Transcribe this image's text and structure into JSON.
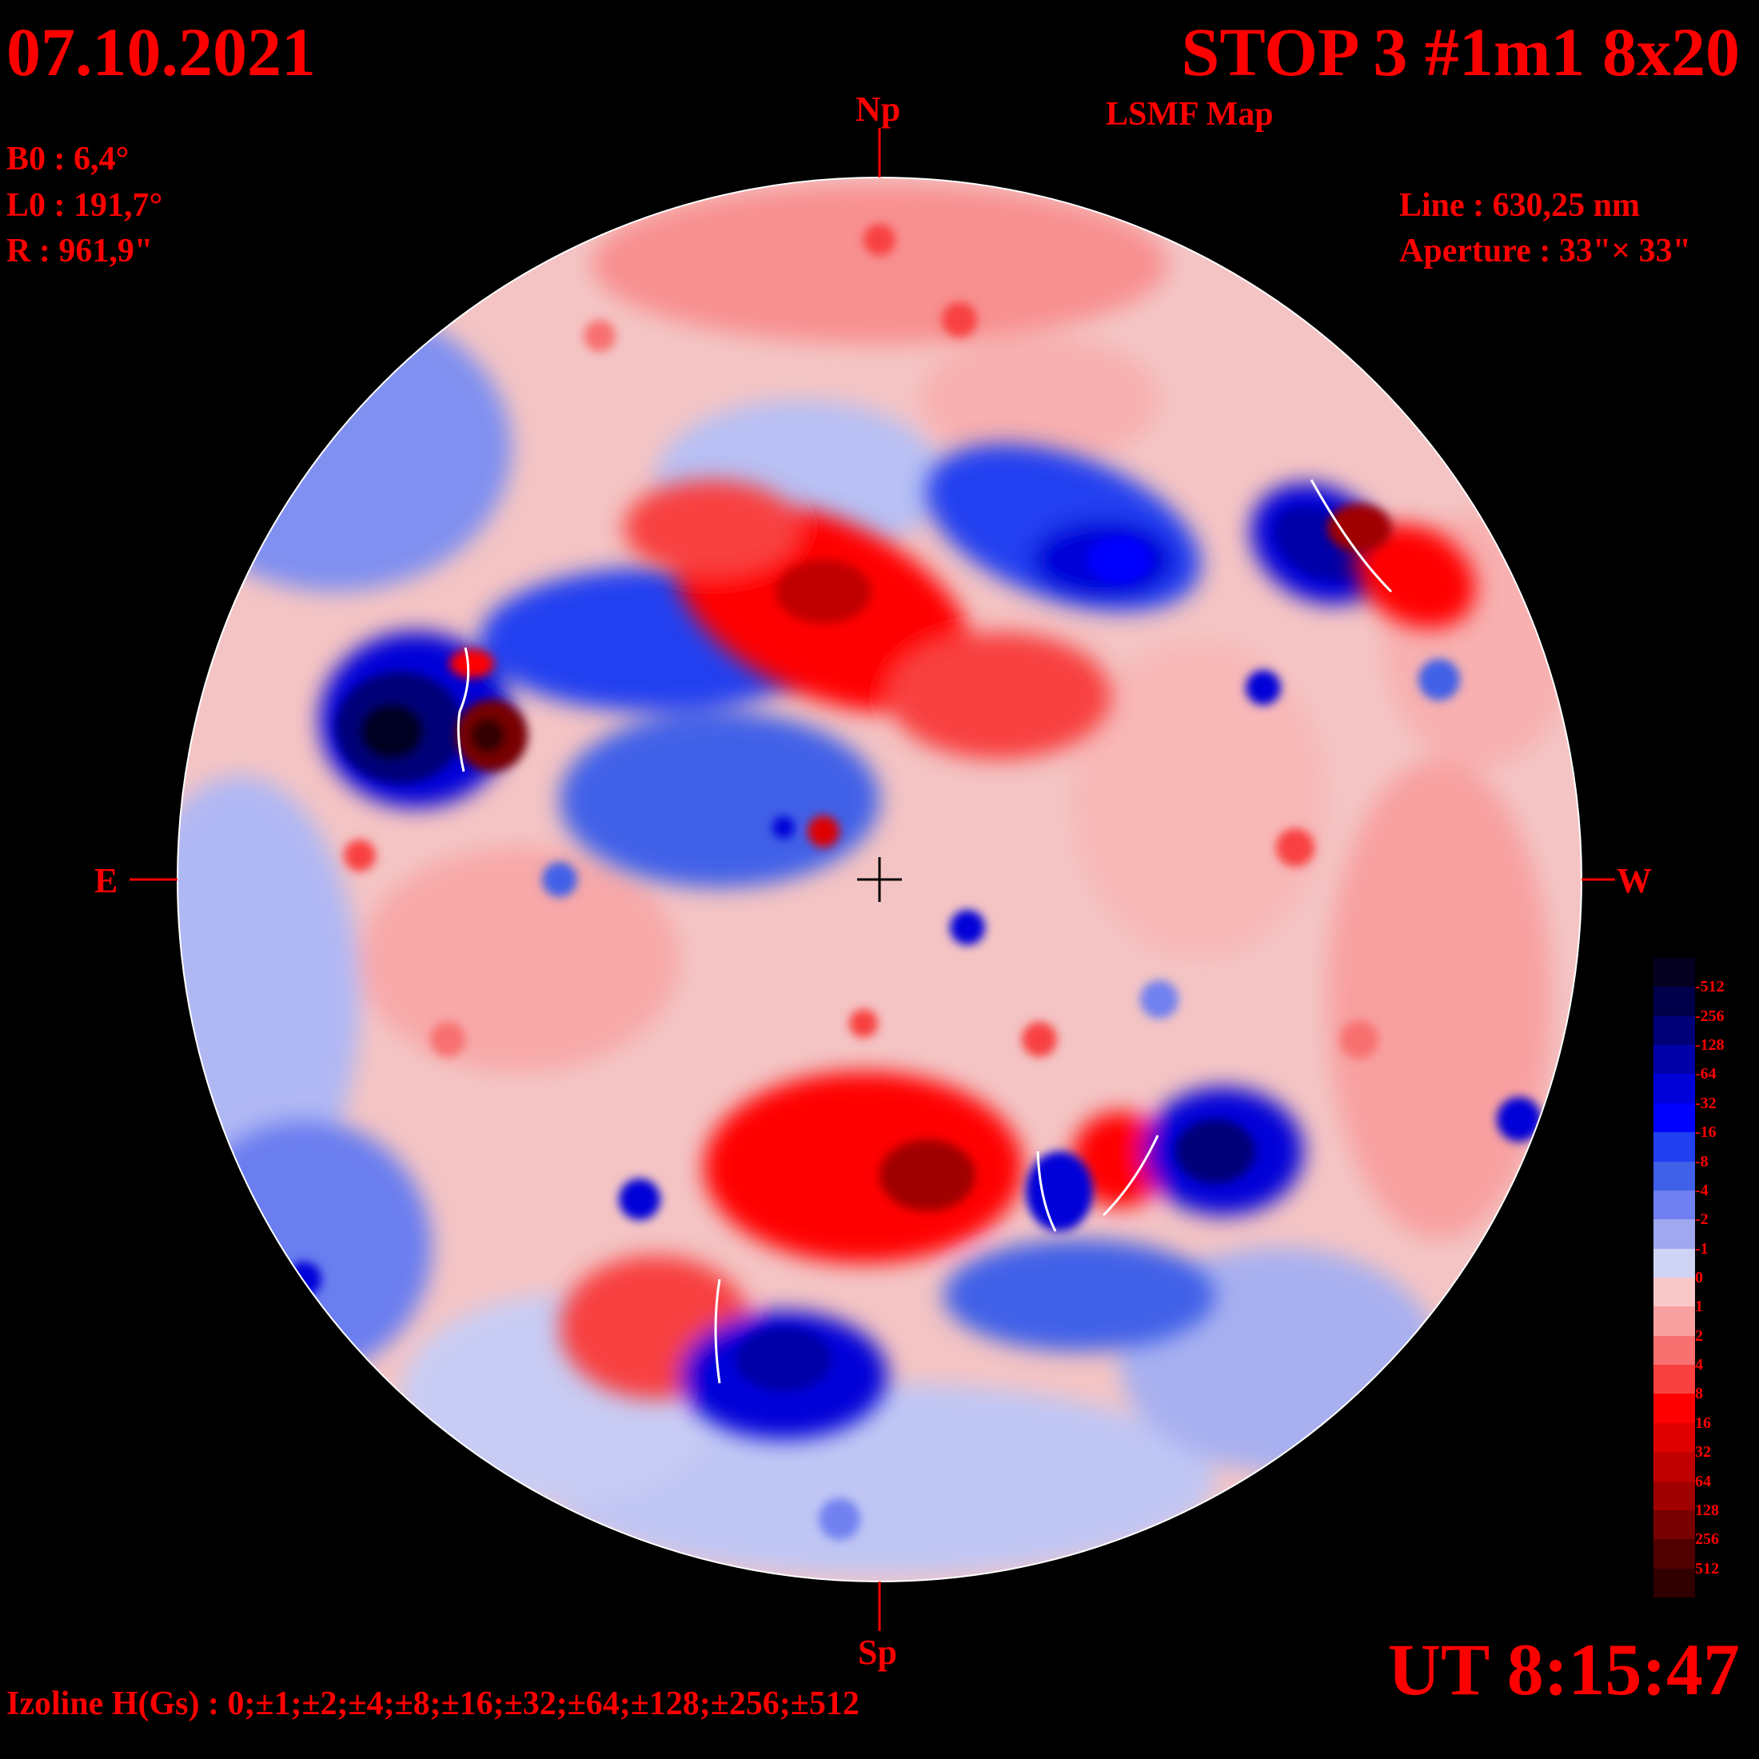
{
  "header": {
    "date": "07.10.2021",
    "title": "STOP 3 #1m1 8x20",
    "subtitle": "LSMF  Map"
  },
  "params": {
    "b0": "B0 : 6,4°",
    "l0": "L0 : 191,7°",
    "r": "R  : 961,9\"",
    "line": "Line :  630,25 nm",
    "aperture": "Aperture : 33\"× 33\""
  },
  "axes": {
    "north": "Np",
    "south": "Sp",
    "east": "E",
    "west": "W"
  },
  "time": "UT 8:15:47",
  "izoline": "Izoline H(Gs) : 0;±1;±2;±4;±8;±16;±32;±64;±128;±256;±512",
  "colorbar": {
    "labels": [
      "-512",
      "-256",
      "-128",
      "-64",
      "-32",
      "-16",
      "-8",
      "-4",
      "-2",
      "-1",
      "0",
      "1",
      "2",
      "4",
      "8",
      "16",
      "32",
      "64",
      "128",
      "256",
      "512"
    ],
    "colors": [
      "#050020",
      "#00004a",
      "#000078",
      "#0000a8",
      "#0000d8",
      "#0000ff",
      "#2040f0",
      "#4060e8",
      "#7080f0",
      "#a0a8f0",
      "#d0d4f4",
      "#f8c8c8",
      "#f8a0a0",
      "#f87070",
      "#f84040",
      "#ff0000",
      "#e00000",
      "#c00000",
      "#a00000",
      "#780000",
      "#500000",
      "#300000"
    ]
  }
}
